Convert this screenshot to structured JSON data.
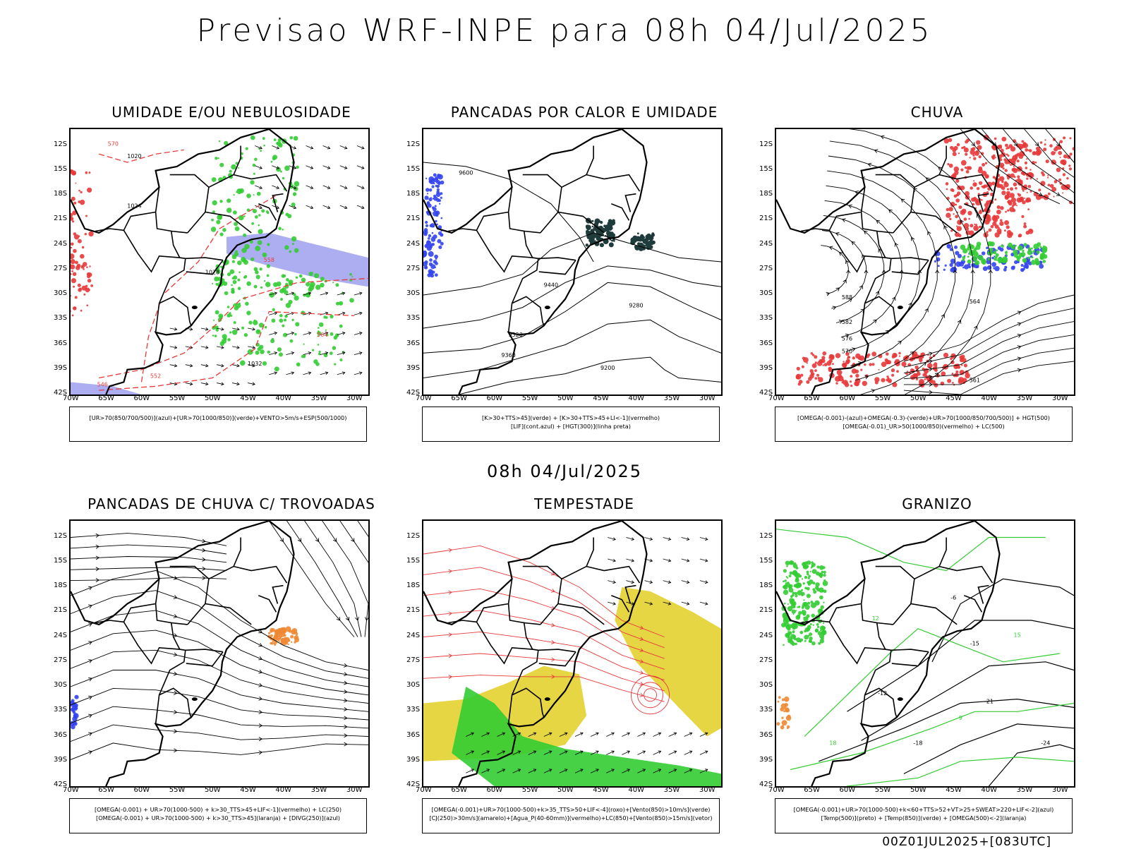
{
  "main_title": "Previsao WRF-INPE  para 08h 04/Jul/2025",
  "mid_title": "08h 04/Jul/2025",
  "footer": "00Z01JUL2025+[083UTC]",
  "lat_labels": [
    "12S",
    "15S",
    "18S",
    "21S",
    "24S",
    "27S",
    "30S",
    "33S",
    "36S",
    "39S",
    "42S"
  ],
  "lon_labels": [
    "70W",
    "65W",
    "60W",
    "55W",
    "50W",
    "45W",
    "40W",
    "35W",
    "30W"
  ],
  "colors": {
    "red": "#e8393a",
    "green": "#33cc33",
    "blue": "#3344ee",
    "purple": "#9999ee",
    "yellow": "#e6d43a",
    "orange": "#ee8833",
    "teal": "#1f3b3b"
  },
  "panels": [
    {
      "title": "UMIDADE E/OU NEBULOSIDADE",
      "legend": [
        "[UR>70(850/700/500)](azul)+[UR>70(1000/850)](verde)+VENTO>5m/s+ESP(500/1000)"
      ],
      "contour_labels": [
        "1020",
        "1024",
        "1028",
        "1032",
        "564",
        "570",
        "552",
        "546",
        "558"
      ]
    },
    {
      "title": "PANCADAS POR CALOR E UMIDADE",
      "legend": [
        "[K>30+TTS>45](verde) + [K>30+TTS>45+LI<-1](vermelho)",
        "[LIF](cont.azul) + [HGT(300)](linha preta)"
      ],
      "contour_labels": [
        "9600",
        "9520",
        "9440",
        "9360",
        "9280",
        "9200"
      ]
    },
    {
      "title": "CHUVA",
      "legend": [
        "[OMEGA(-0.001)-(azul)+OMEGA(-0.3)-(verde)+UR>70(1000/850/700/500)] + HGT(500)",
        "[OMEGA(-0.01)_UR>50(1000/850)(vermelho) + LC(500)"
      ],
      "contour_labels": [
        "588",
        "582",
        "576",
        "570",
        "564",
        "561"
      ]
    },
    {
      "title": "PANCADAS DE CHUVA C/ TROVOADAS",
      "legend": [
        "[OMEGA(-0.001) + UR>70(1000-500) + k>30_TTS>45+LIF<-1](vermelho) + LC(250)",
        "[OMEGA(-0.001) + UR>70(1000-500) + k>30_TTS>45](laranja) + [DIVG(250)](azul)"
      ],
      "contour_labels": []
    },
    {
      "title": "TEMPESTADE",
      "legend": [
        "[OMEGA(-0.001)+UR>70(1000-500)+k>35_TTS>50+LIF<-4](roxo)+[Vento(850)>10m/s](verde)",
        "[CJ(250)>30m/s](amarelo)+[Agua_P(40-60mm)](vermelho)+LC(850)+[Vento(850)>15m/s](vetor)"
      ],
      "contour_labels": []
    },
    {
      "title": "GRANIZO",
      "legend": [
        "[OMEGA(-0.001)+UR>70(1000-500)+k<60+TTS>52+VT>25+SWEAT>220+LIF<-2](azul)",
        "[Temp(500)](preto) + [Temp(850)](verde) + [OMEGA(500)<-2](laranja)"
      ],
      "contour_labels": [
        "-6",
        "-12",
        "-15",
        "-18",
        "-21",
        "-24",
        "9",
        "12",
        "15",
        "18"
      ]
    }
  ]
}
